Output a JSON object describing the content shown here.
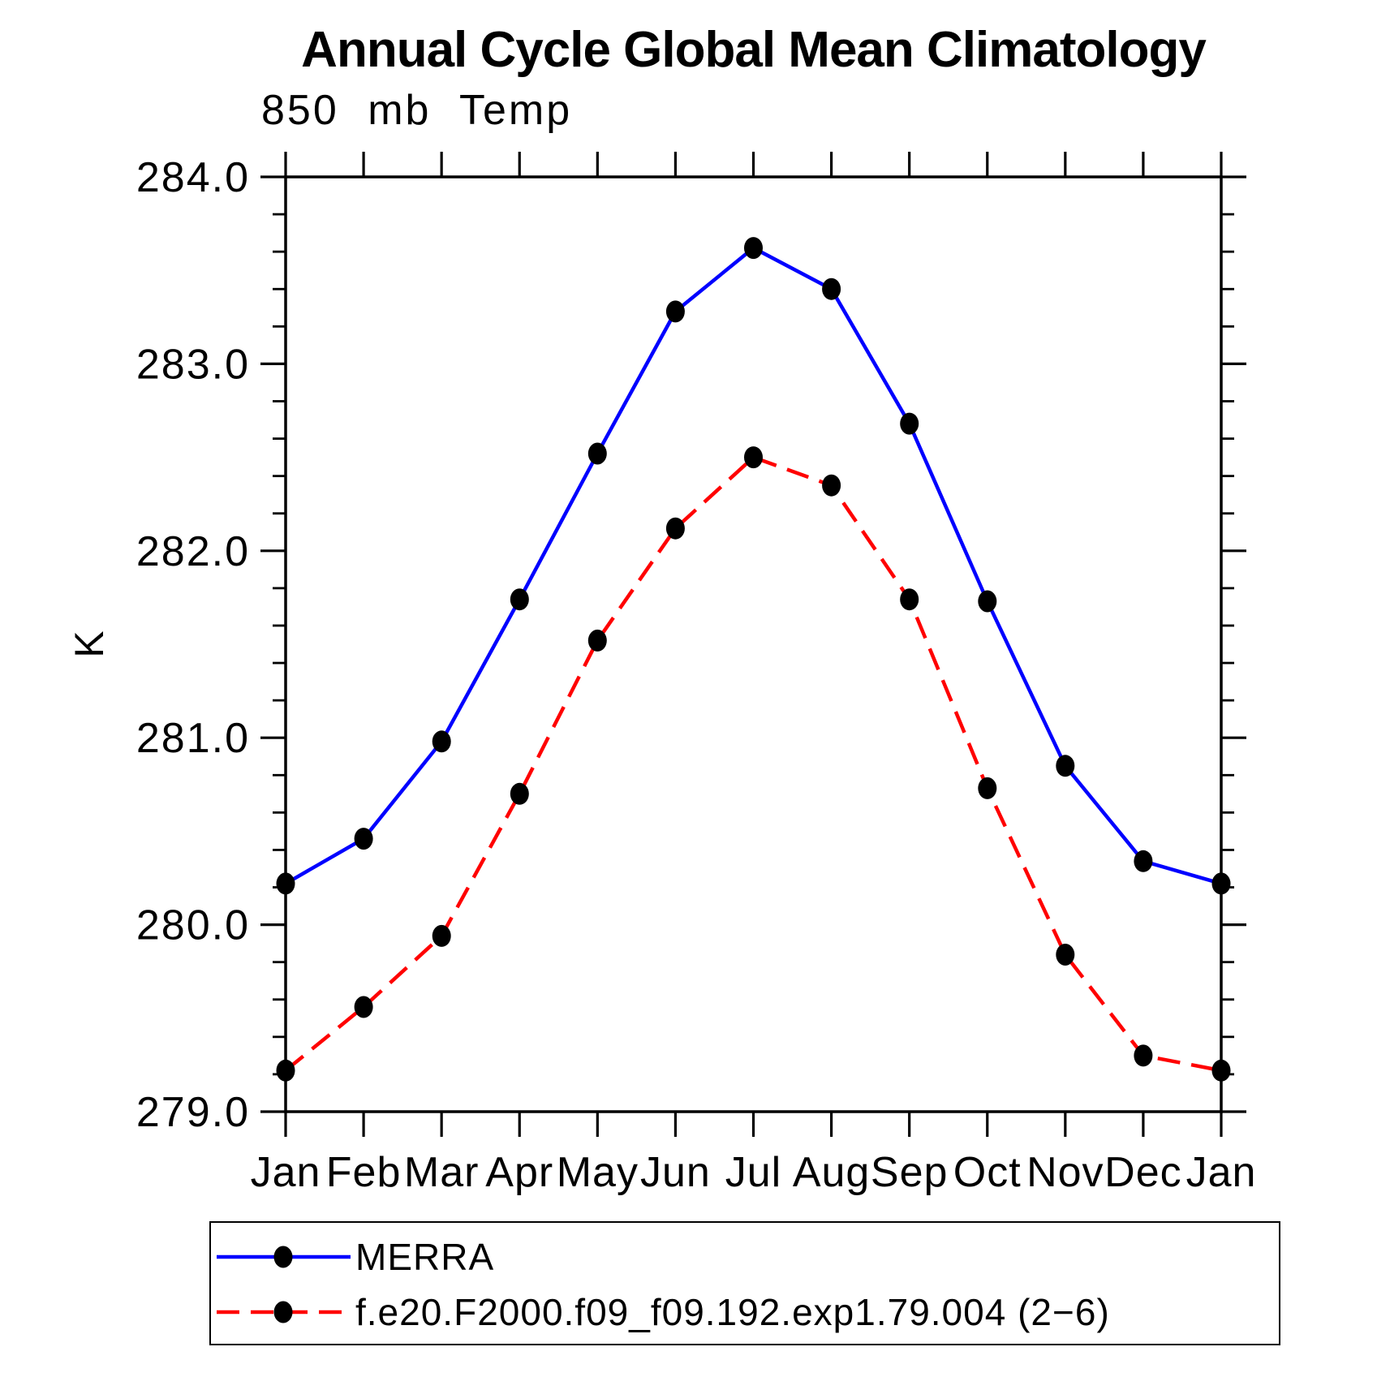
{
  "page_title": "Annual Cycle Global Mean Climatology",
  "chart_data": {
    "type": "line",
    "title": "Annual Cycle Global Mean Climatology",
    "subtitle": "850 mb Temp",
    "ylabel": "K",
    "xlabel": "",
    "x_categories": [
      "Jan",
      "Feb",
      "Mar",
      "Apr",
      "May",
      "Jun",
      "Jul",
      "Aug",
      "Sep",
      "Oct",
      "Nov",
      "Dec",
      "Jan"
    ],
    "ylim": [
      279.0,
      284.0
    ],
    "ytick_labels": [
      "279.0",
      "280.0",
      "281.0",
      "282.0",
      "283.0",
      "284.0"
    ],
    "ytick_major_step": 1.0,
    "ytick_minor_step": 0.2,
    "grid": false,
    "legend_position": "bottom-left",
    "axis_color": "#000000",
    "marker_color": "#000000",
    "series": [
      {
        "key": "merra",
        "name": "MERRA",
        "color": "#0000ff",
        "style": "solid",
        "marker": "filled-circle",
        "values": [
          280.22,
          280.46,
          280.98,
          281.74,
          282.52,
          283.28,
          283.62,
          283.4,
          282.68,
          281.73,
          280.85,
          280.34,
          280.22
        ]
      },
      {
        "key": "model",
        "name": "f.e20.F2000.f09_f09.192.exp1.79.004 (2−6)",
        "color": "#ff0000",
        "style": "dashed",
        "marker": "filled-circle",
        "values": [
          279.22,
          279.56,
          279.94,
          280.7,
          281.52,
          282.12,
          282.5,
          282.35,
          281.74,
          280.73,
          279.84,
          279.3,
          279.22
        ]
      }
    ]
  }
}
